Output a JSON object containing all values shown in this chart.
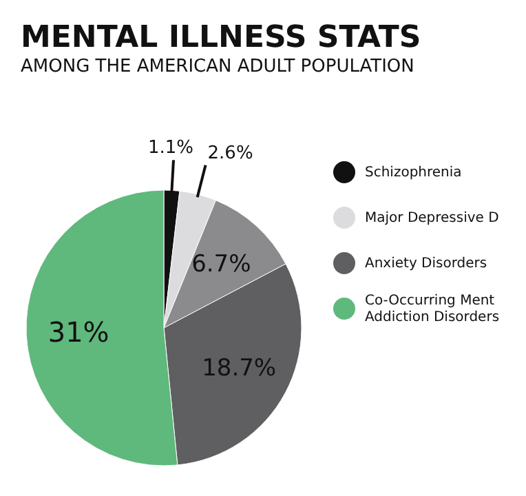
{
  "chart_data": {
    "type": "pie",
    "title": "MENTAL ILLNESS STATS",
    "subtitle": "AMONG THE AMERICAN ADULT POPULATION",
    "categories": [
      "Schizophrenia",
      "Major Depressive D",
      null,
      "Anxiety Disorders",
      "Co-Occurring Ment\nAddiction Disorders"
    ],
    "values": [
      1.1,
      2.6,
      6.7,
      18.7,
      31
    ],
    "value_labels": [
      "1.1%",
      "2.6%",
      "6.7%",
      "18.7%",
      "31%"
    ],
    "colors": [
      "#111111",
      "#dcdcde",
      "#8b8b8d",
      "#5f5f62",
      "#5fb87c"
    ],
    "legend": "right"
  }
}
